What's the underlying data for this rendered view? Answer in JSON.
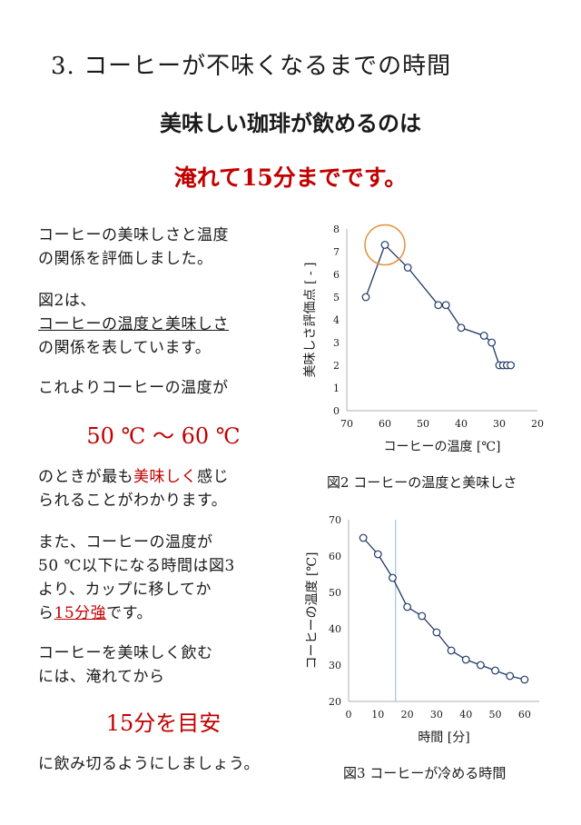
{
  "title": "3. コーヒーが不味くなるまでの時間",
  "lead": "美味しい珈琲が飲めるのは",
  "headline": "淹れて15分までです。",
  "body": {
    "p1": [
      "コーヒーの美味しさと温度",
      "の関係を評価しました。"
    ],
    "p2_line1": "図2は、",
    "p2_line2": "コーヒーの温度と美味しさ",
    "p2_line3": "の関係を表しています。",
    "p3": "これよりコーヒーの温度が",
    "range": "50 ℃ ～ 60 ℃",
    "p4_a": "のときが最も",
    "p4_red": "美味しく",
    "p4_b": "感じ",
    "p4_line2": "られることがわかります。",
    "p5": [
      "また、コーヒーの温度が",
      "50 ℃以下になる時間は図3",
      "より、カップに移してか"
    ],
    "p5_last_a": "ら",
    "p5_last_red": "15分強",
    "p5_last_b": "です。",
    "p6": [
      "コーヒーを美味しく飲む",
      "には、淹れてから"
    ],
    "target": "15分を目安",
    "closing": "に飲み切るようにしましょう。"
  },
  "colors": {
    "accent": "#c00000",
    "series": "#1f3864",
    "highlight_circle": "#e69140",
    "marker_line": "#9dc3e6"
  },
  "chart_data": [
    {
      "type": "line",
      "caption": "図2 コーヒーの温度と美味しさ",
      "xlabel": "コーヒーの温度 [℃]",
      "ylabel": "美味しさ評価点 [ - ]",
      "xlim": [
        70,
        20
      ],
      "ylim": [
        0,
        8
      ],
      "x_ticks": [
        "70",
        "60",
        "50",
        "40",
        "30",
        "20"
      ],
      "y_ticks": [
        "0",
        "1",
        "2",
        "3",
        "4",
        "5",
        "6",
        "7",
        "8"
      ],
      "x": [
        65,
        60,
        54,
        46,
        44,
        40,
        34,
        32,
        30,
        29,
        28,
        27
      ],
      "y": [
        5.0,
        7.3,
        6.3,
        4.65,
        4.65,
        3.65,
        3.3,
        3.0,
        2.0,
        2.0,
        2.0,
        2.0
      ],
      "highlight": {
        "x": 60,
        "y": 7.3
      },
      "grid": false
    },
    {
      "type": "line",
      "caption": "図3 コーヒーが冷める時間",
      "xlabel": "時間 [分]",
      "ylabel": "コーヒーの温度 [℃]",
      "xlim": [
        0,
        65
      ],
      "ylim": [
        20,
        70
      ],
      "x_ticks": [
        "0",
        "10",
        "20",
        "30",
        "40",
        "50",
        "60"
      ],
      "y_ticks": [
        "20",
        "30",
        "40",
        "50",
        "60",
        "70"
      ],
      "x": [
        5,
        10,
        15,
        20,
        25,
        30,
        35,
        40,
        45,
        50,
        55,
        60
      ],
      "y": [
        65,
        60.5,
        54,
        46,
        43.5,
        39,
        34,
        31.5,
        30,
        28.5,
        27,
        26
      ],
      "reference_x": 16,
      "grid": false
    }
  ]
}
